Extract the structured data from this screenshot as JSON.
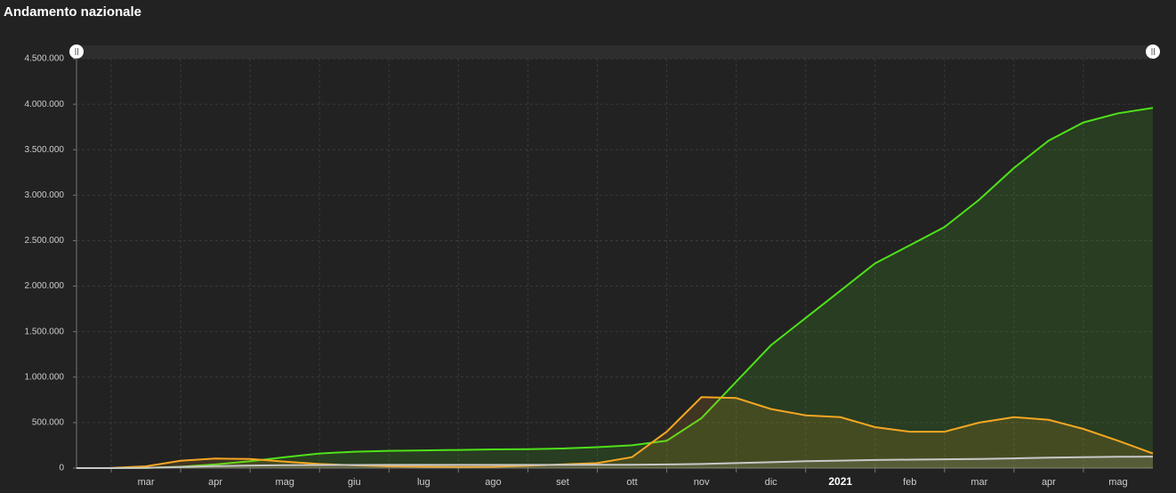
{
  "chart_data": {
    "type": "line",
    "title": "Andamento nazionale",
    "categories": [
      null,
      null,
      "mar",
      null,
      "apr",
      null,
      "mag",
      null,
      "giu",
      null,
      "lug",
      null,
      "ago",
      null,
      "set",
      null,
      "ott",
      null,
      "nov",
      null,
      "dic",
      null,
      "2021",
      null,
      "feb",
      null,
      "mar",
      null,
      "apr",
      null,
      "mag",
      null
    ],
    "series": [
      {
        "color": "#4fe01a",
        "values": [
          0,
          0,
          2000,
          15000,
          40000,
          75000,
          120000,
          160000,
          180000,
          190000,
          195000,
          200000,
          205000,
          207000,
          215000,
          230000,
          250000,
          300000,
          550000,
          950000,
          1350000,
          1650000,
          1950000,
          2250000,
          2450000,
          2650000,
          2950000,
          3300000,
          3600000,
          3800000,
          3900000,
          3960000
        ]
      },
      {
        "color": "#f5a623",
        "values": [
          0,
          1000,
          20000,
          80000,
          105000,
          100000,
          70000,
          45000,
          30000,
          20000,
          15000,
          13000,
          15000,
          25000,
          40000,
          55000,
          120000,
          400000,
          780000,
          770000,
          650000,
          580000,
          560000,
          450000,
          400000,
          400000,
          500000,
          560000,
          530000,
          430000,
          300000,
          160000
        ]
      },
      {
        "color": "#c8c8c8",
        "values": [
          0,
          0,
          2000,
          13000,
          22000,
          28000,
          31000,
          33000,
          34000,
          35000,
          35000,
          35000,
          35500,
          35500,
          35700,
          36000,
          37000,
          40000,
          45000,
          55000,
          65000,
          75000,
          82000,
          89000,
          93000,
          97000,
          101000,
          107000,
          114000,
          120000,
          124000,
          126000
        ]
      }
    ],
    "ylim": [
      0,
      4500000
    ],
    "yticks": [
      0,
      {
        "value": 500000,
        "label": "500.000"
      },
      {
        "value": 1000000,
        "label": "1.000.000"
      },
      {
        "value": 1500000,
        "label": "1.500.000"
      },
      {
        "value": 2000000,
        "label": "2.000.000"
      },
      {
        "value": 2500000,
        "label": "2.500.000"
      },
      {
        "value": 3000000,
        "label": "3.000.000"
      },
      {
        "value": 3500000,
        "label": "3.500.000"
      },
      {
        "value": 4000000,
        "label": "4.000.000"
      },
      {
        "value": 4500000,
        "label": "4.500.000"
      }
    ],
    "grid": true
  }
}
